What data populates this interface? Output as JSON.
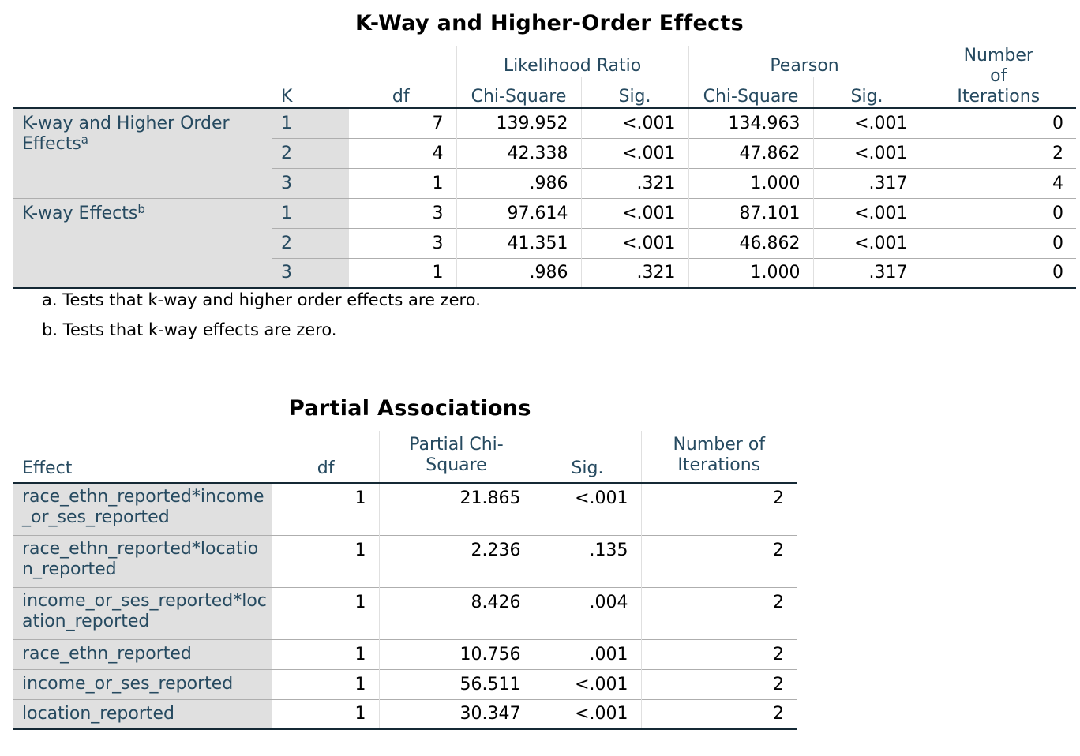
{
  "table1": {
    "title": "K-Way and Higher-Order Effects",
    "headers": {
      "k": "K",
      "df": "df",
      "lr_group": "Likelihood Ratio",
      "pearson_group": "Pearson",
      "chisq": "Chi-Square",
      "sig": "Sig.",
      "iterations": "Number of Iterations"
    },
    "groups": [
      {
        "label": "K-way and Higher Order Effects",
        "sup": "a"
      },
      {
        "label": "K-way Effects",
        "sup": "b"
      }
    ],
    "rows": [
      {
        "k": "1",
        "df": "7",
        "lr_chi": "139.952",
        "lr_sig": "<.001",
        "p_chi": "134.963",
        "p_sig": "<.001",
        "iter": "0"
      },
      {
        "k": "2",
        "df": "4",
        "lr_chi": "42.338",
        "lr_sig": "<.001",
        "p_chi": "47.862",
        "p_sig": "<.001",
        "iter": "2"
      },
      {
        "k": "3",
        "df": "1",
        "lr_chi": ".986",
        "lr_sig": ".321",
        "p_chi": "1.000",
        "p_sig": ".317",
        "iter": "4"
      },
      {
        "k": "1",
        "df": "3",
        "lr_chi": "97.614",
        "lr_sig": "<.001",
        "p_chi": "87.101",
        "p_sig": "<.001",
        "iter": "0"
      },
      {
        "k": "2",
        "df": "3",
        "lr_chi": "41.351",
        "lr_sig": "<.001",
        "p_chi": "46.862",
        "p_sig": "<.001",
        "iter": "0"
      },
      {
        "k": "3",
        "df": "1",
        "lr_chi": ".986",
        "lr_sig": ".321",
        "p_chi": "1.000",
        "p_sig": ".317",
        "iter": "0"
      }
    ],
    "footnotes": [
      "a. Tests that k-way and higher order effects are zero.",
      "b. Tests that k-way effects are zero."
    ]
  },
  "table2": {
    "title": "Partial Associations",
    "headers": {
      "effect": "Effect",
      "df": "df",
      "chisq": "Partial Chi-Square",
      "sig": "Sig.",
      "iterations": "Number of Iterations"
    },
    "rows": [
      {
        "effect": "race_ethn_reported*income_or_ses_reported",
        "df": "1",
        "chi": "21.865",
        "sig": "<.001",
        "iter": "2"
      },
      {
        "effect": "race_ethn_reported*location_reported",
        "df": "1",
        "chi": "2.236",
        "sig": ".135",
        "iter": "2"
      },
      {
        "effect": "income_or_ses_reported*location_reported",
        "df": "1",
        "chi": "8.426",
        "sig": ".004",
        "iter": "2"
      },
      {
        "effect": "race_ethn_reported",
        "df": "1",
        "chi": "10.756",
        "sig": ".001",
        "iter": "2"
      },
      {
        "effect": "income_or_ses_reported",
        "df": "1",
        "chi": "56.511",
        "sig": "<.001",
        "iter": "2"
      },
      {
        "effect": "location_reported",
        "df": "1",
        "chi": "30.347",
        "sig": "<.001",
        "iter": "2"
      }
    ]
  }
}
